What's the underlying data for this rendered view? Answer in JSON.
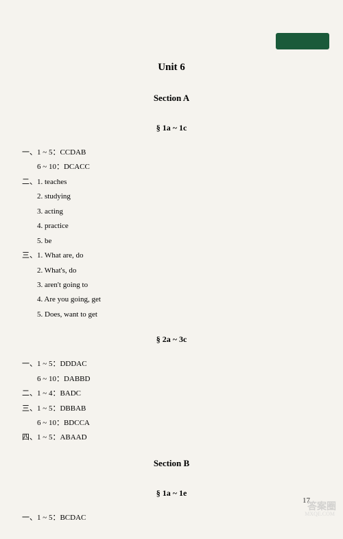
{
  "tab_color": "#1a5a3a",
  "unit_title": "Unit 6",
  "sections": {
    "section_a": {
      "title": "Section A",
      "subsections": {
        "sub1": {
          "title": "§ 1a ~ 1c",
          "groups": [
            {
              "prefix": "一、1 ~ 5：",
              "value": "CCDAB",
              "indent_prefix": "6 ~ 10：",
              "indent_value": "DCACC"
            },
            {
              "prefix": "二、",
              "items": [
                "1. teaches",
                "2. studying",
                "3. acting",
                "4. practice",
                "5. be"
              ]
            },
            {
              "prefix": "三、",
              "items": [
                "1. What are, do",
                "2. What's, do",
                "3. aren't going to",
                "4. Are you going, get",
                "5. Does, want to get"
              ]
            }
          ]
        },
        "sub2": {
          "title": "§ 2a ~ 3c",
          "groups": [
            {
              "prefix": "一、1 ~ 5：",
              "value": "DDDAC",
              "indent_prefix": "6 ~ 10：",
              "indent_value": "DABBD"
            },
            {
              "prefix": "二、1 ~ 4：",
              "value": "BADC"
            },
            {
              "prefix": "三、1 ~ 5：",
              "value": "DBBAB",
              "indent_prefix": "6 ~ 10：",
              "indent_value": "BDCCA"
            },
            {
              "prefix": "四、1 ~ 5：",
              "value": "ABAAD"
            }
          ]
        }
      }
    },
    "section_b": {
      "title": "Section B",
      "subsections": {
        "sub1": {
          "title": "§ 1a ~ 1e",
          "groups": [
            {
              "prefix": "一、1 ~ 5：",
              "value": "BCDAC"
            }
          ]
        }
      }
    }
  },
  "page_number": "17",
  "watermark": "答案圈",
  "watermark_sub": "MXQE.COM"
}
